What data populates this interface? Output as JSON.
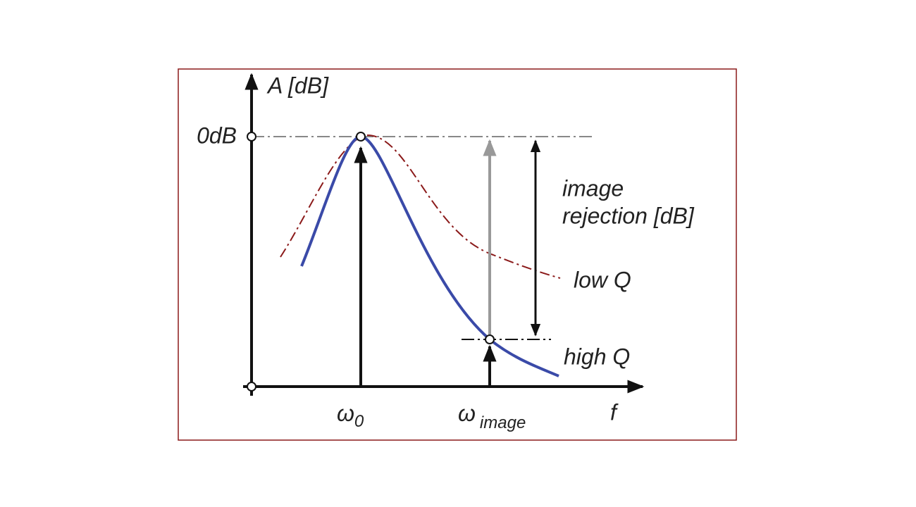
{
  "axis": {
    "y_label": "A [dB]",
    "x_label": "f",
    "zero_db": "0dB"
  },
  "markers": {
    "omega0": {
      "symbol": "ω",
      "subscript": "0"
    },
    "omega_image": {
      "symbol": "ω",
      "subscript": "image"
    }
  },
  "annotations": {
    "rejection_line1": "image",
    "rejection_line2": "rejection [dB]",
    "low_q": "low Q",
    "high_q": "high Q"
  }
}
